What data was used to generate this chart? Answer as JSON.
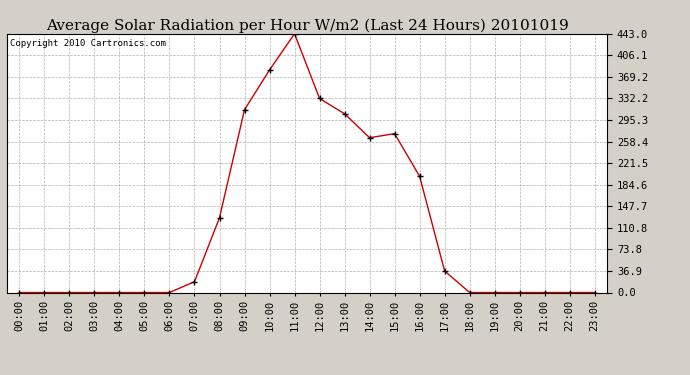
{
  "title": "Average Solar Radiation per Hour W/m2 (Last 24 Hours) 20101019",
  "copyright": "Copyright 2010 Cartronics.com",
  "hours": [
    "00:00",
    "01:00",
    "02:00",
    "03:00",
    "04:00",
    "05:00",
    "06:00",
    "07:00",
    "08:00",
    "09:00",
    "10:00",
    "11:00",
    "12:00",
    "13:00",
    "14:00",
    "15:00",
    "16:00",
    "17:00",
    "18:00",
    "19:00",
    "20:00",
    "21:00",
    "22:00",
    "23:00"
  ],
  "values": [
    0.0,
    0.0,
    0.0,
    0.0,
    0.0,
    0.0,
    0.0,
    18.5,
    128.0,
    313.0,
    381.0,
    443.0,
    332.2,
    306.0,
    265.0,
    272.0,
    199.0,
    36.9,
    0.0,
    0.0,
    0.0,
    0.0,
    0.0,
    0.0
  ],
  "yticks": [
    0.0,
    36.9,
    73.8,
    110.8,
    147.7,
    184.6,
    221.5,
    258.4,
    295.3,
    332.2,
    369.2,
    406.1,
    443.0
  ],
  "line_color": "#cc0000",
  "marker_color": "#000000",
  "bg_color": "#d4d0c8",
  "plot_bg": "#ffffff",
  "grid_color": "#b0b0b0",
  "title_fontsize": 11,
  "copyright_fontsize": 6.5,
  "tick_fontsize": 7.5,
  "ymax": 443.0,
  "ymin": 0.0
}
